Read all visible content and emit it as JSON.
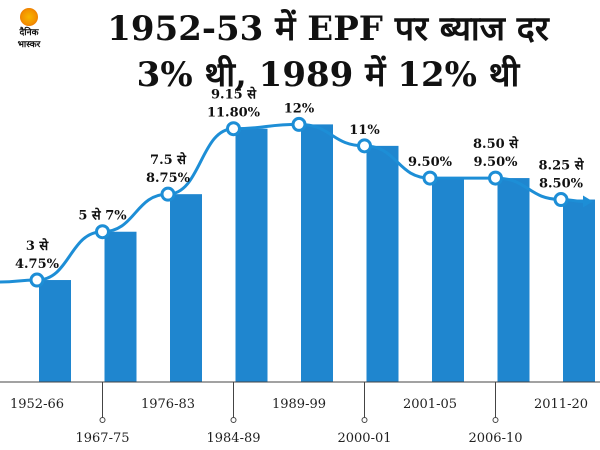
{
  "brand": {
    "logo_text_line1": "दैनिक",
    "logo_text_line2": "भास्कर"
  },
  "title_line1": "1952-53 में EPF पर ब्याज दर",
  "title_line2": "3% थी, 1989 में 12% थी",
  "colors": {
    "bar": "#1f86cf",
    "line": "#1d8ed6",
    "marker_fill": "#ffffff",
    "axis": "#444444"
  },
  "chart_data": {
    "type": "bar",
    "title": "1952-53 में EPF पर ब्याज दर 3% थी, 1989 में 12% थी",
    "xlabel": "",
    "ylabel": "",
    "ylim": [
      0,
      15
    ],
    "grid": false,
    "legend": "none",
    "categories": [
      "1952-66",
      "1967-75",
      "1976-83",
      "1984-89",
      "1989-99",
      "2000-01",
      "2001-05",
      "2006-10",
      "2011-20"
    ],
    "values": [
      4.75,
      7,
      8.75,
      11.8,
      12,
      11,
      9.5,
      9.5,
      8.5
    ],
    "data_labels": [
      [
        "3 से",
        "4.75%"
      ],
      [
        "5 से 7%"
      ],
      [
        "7.5 से",
        "8.75%"
      ],
      [
        "9.15 से",
        "11.80%"
      ],
      [
        "12%"
      ],
      [
        "11%"
      ],
      [
        "9.50%"
      ],
      [
        "8.50 से",
        "9.50%"
      ],
      [
        "8.25 से",
        "8.50%"
      ]
    ],
    "overlay_line": {
      "values": [
        4.75,
        7,
        8.75,
        11.8,
        12,
        11,
        9.5,
        9.5,
        8.5
      ],
      "arrow": true
    }
  }
}
